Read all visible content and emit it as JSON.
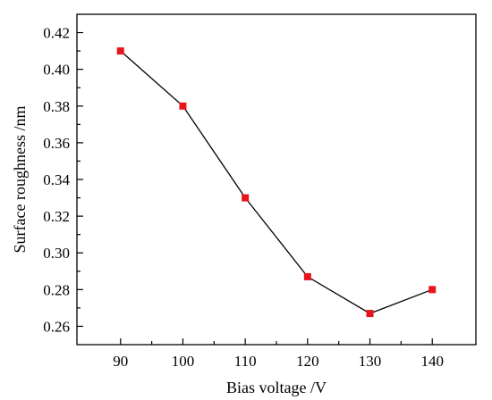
{
  "chart_data": {
    "type": "line",
    "title": "",
    "xlabel": "Bias voltage /V",
    "ylabel": "Surface roughness /nm",
    "x": [
      90,
      100,
      110,
      120,
      130,
      140
    ],
    "series": [
      {
        "values": [
          0.41,
          0.38,
          0.33,
          0.287,
          0.267,
          0.28
        ]
      }
    ],
    "xlim": [
      83,
      147
    ],
    "ylim": [
      0.25,
      0.43
    ],
    "xticks": [
      "90",
      "100",
      "110",
      "120",
      "130",
      "140"
    ],
    "yticks": [
      "0.26",
      "0.28",
      "0.30",
      "0.32",
      "0.34",
      "0.36",
      "0.38",
      "0.40",
      "0.42"
    ],
    "grid": false,
    "legend": "none",
    "marker": "square",
    "colors": {
      "marker": "#e8141c",
      "line": "#000000",
      "axis": "#000000"
    }
  }
}
